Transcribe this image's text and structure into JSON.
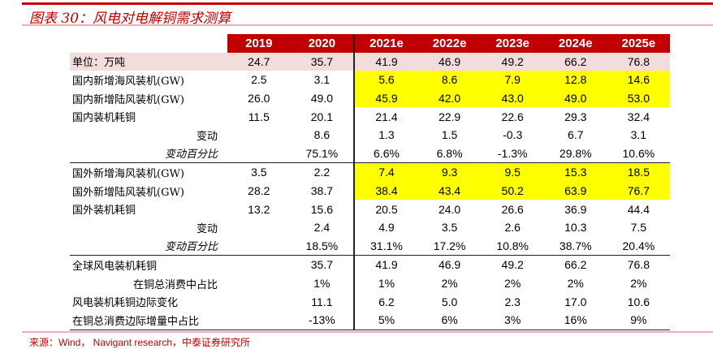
{
  "title": "图表 30：风电对电解铜需求测算",
  "source": "来源：Wind， Navigant research，中泰证券研究所",
  "columns": [
    "2019",
    "2020",
    "2021e",
    "2022e",
    "2023e",
    "2024e",
    "2025e"
  ],
  "rows": [
    {
      "label": "单位：万吨",
      "values": [
        "24.7",
        "35.7",
        "41.9",
        "46.9",
        "49.2",
        "66.2",
        "76.8"
      ],
      "cls": "unit"
    },
    {
      "label": "国内新增海风装机(GW)",
      "values": [
        "2.5",
        "3.1",
        "5.6",
        "8.6",
        "7.9",
        "12.8",
        "14.6"
      ],
      "yellow": true
    },
    {
      "label": "国内新增陆风装机(GW)",
      "values": [
        "26.0",
        "49.0",
        "45.9",
        "42.0",
        "43.0",
        "49.0",
        "53.0"
      ],
      "yellow": true
    },
    {
      "label": "国内装机耗铜",
      "values": [
        "11.5",
        "20.1",
        "21.4",
        "22.9",
        "22.6",
        "29.3",
        "32.4"
      ]
    },
    {
      "label": "变动",
      "values": [
        "",
        "8.6",
        "1.3",
        "1.5",
        "-0.3",
        "6.7",
        "3.1"
      ],
      "indent": true
    },
    {
      "label": "变动百分比",
      "values": [
        "",
        "75.1%",
        "6.6%",
        "6.8%",
        "-1.3%",
        "29.8%",
        "10.6%"
      ],
      "indent": true,
      "italic": true
    },
    {
      "label": "国外新增海风装机(GW)",
      "values": [
        "3.5",
        "2.2",
        "7.4",
        "9.3",
        "9.5",
        "15.3",
        "18.5"
      ],
      "yellow": true,
      "sep": true
    },
    {
      "label": "国外新增陆风装机(GW)",
      "values": [
        "28.2",
        "38.7",
        "38.4",
        "43.4",
        "50.2",
        "63.9",
        "76.7"
      ],
      "yellow": true
    },
    {
      "label": "国外装机耗铜",
      "values": [
        "13.2",
        "15.6",
        "20.5",
        "24.0",
        "26.6",
        "36.9",
        "44.4"
      ]
    },
    {
      "label": "变动",
      "values": [
        "",
        "2.4",
        "4.9",
        "3.5",
        "2.6",
        "10.3",
        "7.5"
      ],
      "indent": true
    },
    {
      "label": "变动百分比",
      "values": [
        "",
        "18.5%",
        "31.1%",
        "17.2%",
        "10.8%",
        "38.7%",
        "20.4%"
      ],
      "indent": true,
      "italic": true
    },
    {
      "label": "全球风电装机耗铜",
      "values": [
        "",
        "35.7",
        "41.9",
        "46.9",
        "49.2",
        "66.2",
        "76.8"
      ],
      "sep": true
    },
    {
      "label": "在铜总消费中占比",
      "values": [
        "",
        "1%",
        "1%",
        "2%",
        "2%",
        "2%",
        "2%"
      ],
      "indent": true
    },
    {
      "label": "风电装机耗铜边际变化",
      "values": [
        "",
        "11.1",
        "6.2",
        "5.0",
        "2.3",
        "17.0",
        "10.6"
      ]
    },
    {
      "label": "在铜总消费边际增量中占比",
      "values": [
        "",
        "-13%",
        "5%",
        "6%",
        "3%",
        "16%",
        "9%"
      ],
      "last": true
    }
  ]
}
